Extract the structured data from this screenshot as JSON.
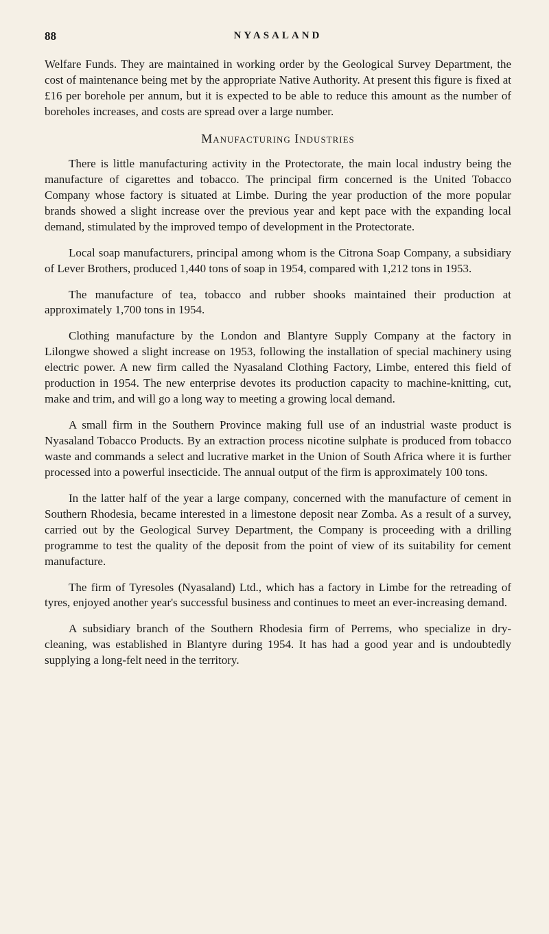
{
  "header": {
    "page_number": "88",
    "running_title": "NYASALAND"
  },
  "body": {
    "p1": "Welfare Funds.  They are maintained in working order by the Geological Survey Department, the cost of maintenance being met by the appropriate Native Authority.  At present this figure is fixed at £16 per borehole per annum, but it is expected to be able to reduce this amount as the number of boreholes increases, and costs are spread over a large number.",
    "h1": "Manufacturing Industries",
    "p2": "There is little manufacturing activity in the Protectorate, the main local industry being the manufacture of cigarettes and tobacco.  The principal firm concerned is the United Tobacco Company whose factory is situated at Limbe.  During the year production of the more popular brands showed a slight increase over the previous year and kept pace with the expanding local demand, stimulated by the improved tempo of development in the Protectorate.",
    "p3": "Local soap manufacturers, principal among whom is the Citrona Soap Company, a subsidiary of Lever Brothers, produced 1,440 tons of soap in 1954, compared with 1,212 tons in 1953.",
    "p4": "The manufacture of tea, tobacco and rubber shooks maintained their production at approximately 1,700 tons in 1954.",
    "p5": "Clothing manufacture by the London and Blantyre Supply Company at the factory in Lilongwe showed a slight increase on 1953, following the installation of special machinery using electric power. A new firm called the Nyasaland Clothing Factory, Limbe, entered this field of production in 1954.  The new enterprise devotes its production capacity to machine-knitting, cut, make and trim, and will go a long way to meeting a growing local demand.",
    "p6": "A small firm in the Southern Province making full use of an industrial waste product is Nyasaland Tobacco Products.  By an extraction process nicotine sulphate is produced from tobacco waste and commands a select and lucrative market in the Union of South Africa where it is further processed into a powerful insecticide.  The annual output of the firm is approximately 100 tons.",
    "p7": "In the latter half of the year a large company, concerned with the manufacture of cement in Southern Rhodesia, became interested in a limestone deposit near Zomba.  As a result of a survey, carried out by the Geological Survey Department, the Company is proceeding with a drilling programme to test the quality of the deposit from the point of view of its suitability for cement manufacture.",
    "p8": "The firm of Tyresoles (Nyasaland) Ltd., which has a factory in Limbe for the retreading of tyres, enjoyed another year's successful business and continues to meet an ever-increasing demand.",
    "p9": "A subsidiary branch of the Southern Rhodesia firm of Perrems, who specialize in dry-cleaning, was established in Blantyre during 1954.  It has had a good year and is undoubtedly supplying a long-felt need in the territory."
  },
  "colors": {
    "background": "#f5f0e6",
    "text": "#1a1a1a"
  },
  "typography": {
    "body_font_size": 17,
    "line_height": 1.35,
    "text_indent": 35,
    "heading_letter_spacing": 1,
    "running_header_letter_spacing": 4
  }
}
